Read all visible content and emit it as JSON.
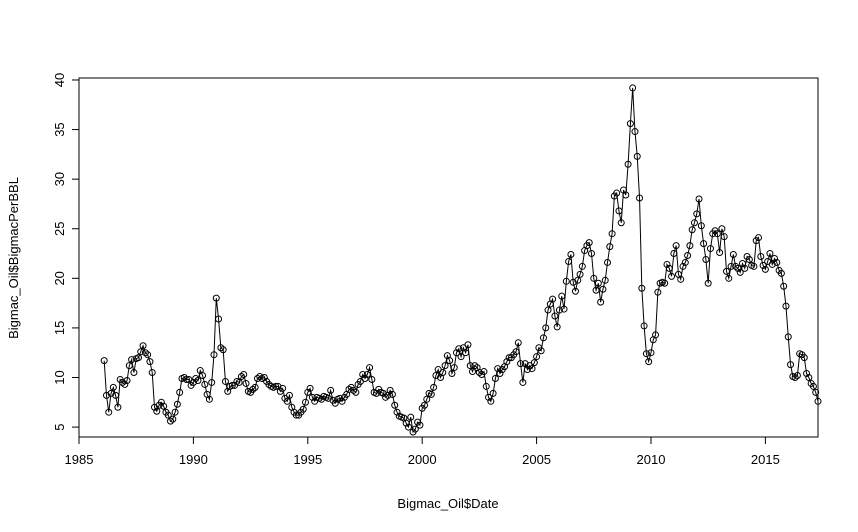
{
  "chart_data": {
    "type": "line",
    "title": "",
    "xlabel": "Bigmac_Oil$Date",
    "ylabel": "Bigmac_Oil$BigmacPerBBL",
    "xlim": [
      1985.0,
      2017.3
    ],
    "ylim": [
      4.0,
      40.2
    ],
    "xticks": [
      1985,
      1990,
      1995,
      2000,
      2005,
      2010,
      2015
    ],
    "yticks": [
      5,
      10,
      15,
      20,
      25,
      30,
      35,
      40
    ],
    "grid": false,
    "legend": "none",
    "series": [
      {
        "values": [
          [
            1986.1,
            11.7
          ],
          [
            1986.2,
            8.2
          ],
          [
            1986.3,
            6.5
          ],
          [
            1986.4,
            8.4
          ],
          [
            1986.5,
            9.0
          ],
          [
            1986.6,
            8.2
          ],
          [
            1986.7,
            7.0
          ],
          [
            1986.8,
            9.8
          ],
          [
            1986.9,
            9.5
          ],
          [
            1987.0,
            9.3
          ],
          [
            1987.1,
            9.7
          ],
          [
            1987.2,
            11.2
          ],
          [
            1987.3,
            11.8
          ],
          [
            1987.4,
            10.5
          ],
          [
            1987.5,
            11.9
          ],
          [
            1987.6,
            12.0
          ],
          [
            1987.7,
            12.6
          ],
          [
            1987.8,
            13.2
          ],
          [
            1987.9,
            12.5
          ],
          [
            1988.0,
            12.3
          ],
          [
            1988.1,
            11.6
          ],
          [
            1988.2,
            10.5
          ],
          [
            1988.3,
            7.0
          ],
          [
            1988.4,
            6.6
          ],
          [
            1988.5,
            7.2
          ],
          [
            1988.6,
            7.5
          ],
          [
            1988.7,
            7.1
          ],
          [
            1988.8,
            6.5
          ],
          [
            1988.9,
            6.2
          ],
          [
            1989.0,
            5.6
          ],
          [
            1989.1,
            5.8
          ],
          [
            1989.2,
            6.5
          ],
          [
            1989.3,
            7.3
          ],
          [
            1989.4,
            8.5
          ],
          [
            1989.5,
            9.9
          ],
          [
            1989.6,
            10.0
          ],
          [
            1989.7,
            9.8
          ],
          [
            1989.8,
            9.8
          ],
          [
            1989.9,
            9.2
          ],
          [
            1990.0,
            9.5
          ],
          [
            1990.1,
            9.9
          ],
          [
            1990.2,
            9.7
          ],
          [
            1990.3,
            10.7
          ],
          [
            1990.4,
            10.2
          ],
          [
            1990.5,
            9.3
          ],
          [
            1990.6,
            8.3
          ],
          [
            1990.7,
            7.8
          ],
          [
            1990.8,
            9.5
          ],
          [
            1990.9,
            12.3
          ],
          [
            1991.0,
            18.0
          ],
          [
            1991.1,
            15.9
          ],
          [
            1991.2,
            13.0
          ],
          [
            1991.3,
            12.8
          ],
          [
            1991.4,
            9.6
          ],
          [
            1991.5,
            8.6
          ],
          [
            1991.6,
            9.1
          ],
          [
            1991.7,
            9.2
          ],
          [
            1991.8,
            9.2
          ],
          [
            1991.9,
            9.6
          ],
          [
            1992.0,
            9.5
          ],
          [
            1992.1,
            10.1
          ],
          [
            1992.2,
            10.3
          ],
          [
            1992.3,
            9.4
          ],
          [
            1992.4,
            8.6
          ],
          [
            1992.5,
            8.5
          ],
          [
            1992.6,
            8.8
          ],
          [
            1992.7,
            9.0
          ],
          [
            1992.8,
            9.9
          ],
          [
            1992.9,
            10.1
          ],
          [
            1993.0,
            9.9
          ],
          [
            1993.1,
            10.0
          ],
          [
            1993.2,
            9.6
          ],
          [
            1993.3,
            9.3
          ],
          [
            1993.4,
            9.1
          ],
          [
            1993.5,
            9.0
          ],
          [
            1993.6,
            9.1
          ],
          [
            1993.7,
            9.1
          ],
          [
            1993.8,
            8.6
          ],
          [
            1993.9,
            8.9
          ],
          [
            1994.0,
            7.9
          ],
          [
            1994.1,
            7.6
          ],
          [
            1994.2,
            8.2
          ],
          [
            1994.3,
            7.0
          ],
          [
            1994.4,
            6.5
          ],
          [
            1994.5,
            6.2
          ],
          [
            1994.6,
            6.2
          ],
          [
            1994.7,
            6.5
          ],
          [
            1994.8,
            6.8
          ],
          [
            1994.9,
            7.5
          ],
          [
            1995.0,
            8.5
          ],
          [
            1995.1,
            8.9
          ],
          [
            1995.2,
            8.0
          ],
          [
            1995.3,
            7.6
          ],
          [
            1995.4,
            8.0
          ],
          [
            1995.5,
            7.9
          ],
          [
            1995.6,
            7.8
          ],
          [
            1995.7,
            8.1
          ],
          [
            1995.8,
            8.0
          ],
          [
            1995.9,
            7.9
          ],
          [
            1996.0,
            8.7
          ],
          [
            1996.1,
            7.7
          ],
          [
            1996.2,
            7.4
          ],
          [
            1996.3,
            7.8
          ],
          [
            1996.4,
            7.9
          ],
          [
            1996.5,
            7.6
          ],
          [
            1996.6,
            8.0
          ],
          [
            1996.7,
            8.3
          ],
          [
            1996.8,
            8.8
          ],
          [
            1996.9,
            9.0
          ],
          [
            1997.0,
            8.7
          ],
          [
            1997.1,
            8.5
          ],
          [
            1997.2,
            9.3
          ],
          [
            1997.3,
            9.6
          ],
          [
            1997.4,
            10.3
          ],
          [
            1997.5,
            9.9
          ],
          [
            1997.6,
            10.3
          ],
          [
            1997.7,
            11.0
          ],
          [
            1997.8,
            9.8
          ],
          [
            1997.9,
            8.5
          ],
          [
            1998.0,
            8.4
          ],
          [
            1998.1,
            8.8
          ],
          [
            1998.2,
            8.5
          ],
          [
            1998.3,
            8.4
          ],
          [
            1998.4,
            8.0
          ],
          [
            1998.5,
            8.2
          ],
          [
            1998.6,
            8.7
          ],
          [
            1998.7,
            8.3
          ],
          [
            1998.8,
            7.2
          ],
          [
            1998.9,
            6.5
          ],
          [
            1999.0,
            6.1
          ],
          [
            1999.1,
            6.0
          ],
          [
            1999.2,
            5.9
          ],
          [
            1999.3,
            5.4
          ],
          [
            1999.4,
            5.0
          ],
          [
            1999.5,
            6.0
          ],
          [
            1999.6,
            4.5
          ],
          [
            1999.7,
            4.8
          ],
          [
            1999.8,
            5.5
          ],
          [
            1999.9,
            5.2
          ],
          [
            2000.0,
            6.9
          ],
          [
            2000.1,
            7.2
          ],
          [
            2000.2,
            7.8
          ],
          [
            2000.3,
            8.4
          ],
          [
            2000.4,
            8.3
          ],
          [
            2000.5,
            9.0
          ],
          [
            2000.6,
            10.2
          ],
          [
            2000.7,
            10.8
          ],
          [
            2000.8,
            10.0
          ],
          [
            2000.9,
            10.5
          ],
          [
            2001.0,
            11.2
          ],
          [
            2001.1,
            12.2
          ],
          [
            2001.2,
            11.7
          ],
          [
            2001.3,
            10.4
          ],
          [
            2001.4,
            11.0
          ],
          [
            2001.5,
            12.5
          ],
          [
            2001.6,
            12.9
          ],
          [
            2001.7,
            12.1
          ],
          [
            2001.8,
            13.0
          ],
          [
            2001.9,
            12.5
          ],
          [
            2002.0,
            13.3
          ],
          [
            2002.1,
            11.2
          ],
          [
            2002.2,
            10.6
          ],
          [
            2002.3,
            11.2
          ],
          [
            2002.4,
            11.0
          ],
          [
            2002.5,
            10.5
          ],
          [
            2002.6,
            10.3
          ],
          [
            2002.7,
            10.6
          ],
          [
            2002.8,
            9.1
          ],
          [
            2002.9,
            8.0
          ],
          [
            2003.0,
            7.6
          ],
          [
            2003.1,
            8.4
          ],
          [
            2003.2,
            9.9
          ],
          [
            2003.3,
            10.9
          ],
          [
            2003.4,
            10.4
          ],
          [
            2003.5,
            10.8
          ],
          [
            2003.6,
            11.1
          ],
          [
            2003.7,
            11.6
          ],
          [
            2003.8,
            12.0
          ],
          [
            2003.9,
            12.0
          ],
          [
            2004.0,
            12.3
          ],
          [
            2004.1,
            12.6
          ],
          [
            2004.2,
            13.5
          ],
          [
            2004.3,
            11.4
          ],
          [
            2004.4,
            9.5
          ],
          [
            2004.5,
            11.4
          ],
          [
            2004.6,
            10.8
          ],
          [
            2004.7,
            11.2
          ],
          [
            2004.8,
            10.9
          ],
          [
            2004.9,
            11.5
          ],
          [
            2005.0,
            12.1
          ],
          [
            2005.1,
            13.0
          ],
          [
            2005.2,
            12.7
          ],
          [
            2005.3,
            14.0
          ],
          [
            2005.4,
            15.0
          ],
          [
            2005.5,
            16.8
          ],
          [
            2005.6,
            17.4
          ],
          [
            2005.7,
            17.9
          ],
          [
            2005.8,
            16.2
          ],
          [
            2005.9,
            15.1
          ],
          [
            2006.0,
            16.8
          ],
          [
            2006.1,
            18.2
          ],
          [
            2006.2,
            16.9
          ],
          [
            2006.3,
            19.7
          ],
          [
            2006.4,
            21.7
          ],
          [
            2006.5,
            22.4
          ],
          [
            2006.6,
            19.6
          ],
          [
            2006.7,
            18.7
          ],
          [
            2006.8,
            19.8
          ],
          [
            2006.9,
            20.4
          ],
          [
            2007.0,
            21.2
          ],
          [
            2007.1,
            22.8
          ],
          [
            2007.2,
            23.3
          ],
          [
            2007.3,
            23.6
          ],
          [
            2007.4,
            22.5
          ],
          [
            2007.5,
            20.0
          ],
          [
            2007.6,
            18.8
          ],
          [
            2007.7,
            19.5
          ],
          [
            2007.8,
            17.6
          ],
          [
            2007.9,
            18.9
          ],
          [
            2008.0,
            19.8
          ],
          [
            2008.1,
            21.6
          ],
          [
            2008.2,
            23.2
          ],
          [
            2008.3,
            24.5
          ],
          [
            2008.4,
            28.3
          ],
          [
            2008.5,
            28.6
          ],
          [
            2008.6,
            26.8
          ],
          [
            2008.7,
            25.6
          ],
          [
            2008.8,
            28.9
          ],
          [
            2008.9,
            28.4
          ],
          [
            2009.0,
            31.5
          ],
          [
            2009.1,
            35.6
          ],
          [
            2009.2,
            39.2
          ],
          [
            2009.3,
            34.8
          ],
          [
            2009.4,
            32.3
          ],
          [
            2009.5,
            28.1
          ],
          [
            2009.6,
            19.0
          ],
          [
            2009.7,
            15.2
          ],
          [
            2009.8,
            12.4
          ],
          [
            2009.9,
            11.6
          ],
          [
            2010.0,
            12.5
          ],
          [
            2010.1,
            13.8
          ],
          [
            2010.2,
            14.3
          ],
          [
            2010.3,
            18.6
          ],
          [
            2010.4,
            19.5
          ],
          [
            2010.5,
            19.6
          ],
          [
            2010.6,
            19.5
          ],
          [
            2010.7,
            21.4
          ],
          [
            2010.8,
            21.0
          ],
          [
            2010.9,
            20.2
          ],
          [
            2011.0,
            22.5
          ],
          [
            2011.1,
            23.3
          ],
          [
            2011.2,
            20.4
          ],
          [
            2011.3,
            19.9
          ],
          [
            2011.4,
            21.2
          ],
          [
            2011.5,
            21.6
          ],
          [
            2011.6,
            22.3
          ],
          [
            2011.7,
            23.3
          ],
          [
            2011.8,
            24.9
          ],
          [
            2011.9,
            25.6
          ],
          [
            2012.0,
            26.5
          ],
          [
            2012.1,
            28.0
          ],
          [
            2012.2,
            25.3
          ],
          [
            2012.3,
            23.5
          ],
          [
            2012.4,
            21.9
          ],
          [
            2012.5,
            19.5
          ],
          [
            2012.6,
            23.0
          ],
          [
            2012.7,
            24.5
          ],
          [
            2012.8,
            24.8
          ],
          [
            2012.9,
            24.5
          ],
          [
            2013.0,
            22.6
          ],
          [
            2013.1,
            25.0
          ],
          [
            2013.2,
            24.2
          ],
          [
            2013.3,
            20.7
          ],
          [
            2013.4,
            20.0
          ],
          [
            2013.5,
            21.2
          ],
          [
            2013.6,
            22.4
          ],
          [
            2013.7,
            21.2
          ],
          [
            2013.8,
            21.0
          ],
          [
            2013.9,
            20.6
          ],
          [
            2014.0,
            21.5
          ],
          [
            2014.1,
            21.0
          ],
          [
            2014.2,
            22.2
          ],
          [
            2014.3,
            21.9
          ],
          [
            2014.4,
            21.3
          ],
          [
            2014.5,
            21.2
          ],
          [
            2014.6,
            23.8
          ],
          [
            2014.7,
            24.1
          ],
          [
            2014.8,
            22.2
          ],
          [
            2014.9,
            21.3
          ],
          [
            2015.0,
            20.9
          ],
          [
            2015.1,
            21.7
          ],
          [
            2015.2,
            22.5
          ],
          [
            2015.3,
            21.4
          ],
          [
            2015.4,
            22.0
          ],
          [
            2015.5,
            21.6
          ],
          [
            2015.6,
            20.8
          ],
          [
            2015.7,
            20.5
          ],
          [
            2015.8,
            19.2
          ],
          [
            2015.9,
            17.2
          ],
          [
            2016.0,
            14.1
          ],
          [
            2016.1,
            11.3
          ],
          [
            2016.2,
            10.1
          ],
          [
            2016.3,
            10.0
          ],
          [
            2016.4,
            10.2
          ],
          [
            2016.5,
            12.4
          ],
          [
            2016.6,
            12.3
          ],
          [
            2016.7,
            12.0
          ],
          [
            2016.8,
            10.4
          ],
          [
            2016.9,
            10.0
          ],
          [
            2017.0,
            9.4
          ],
          [
            2017.1,
            9.1
          ],
          [
            2017.2,
            8.5
          ],
          [
            2017.3,
            7.6
          ]
        ]
      }
    ]
  }
}
